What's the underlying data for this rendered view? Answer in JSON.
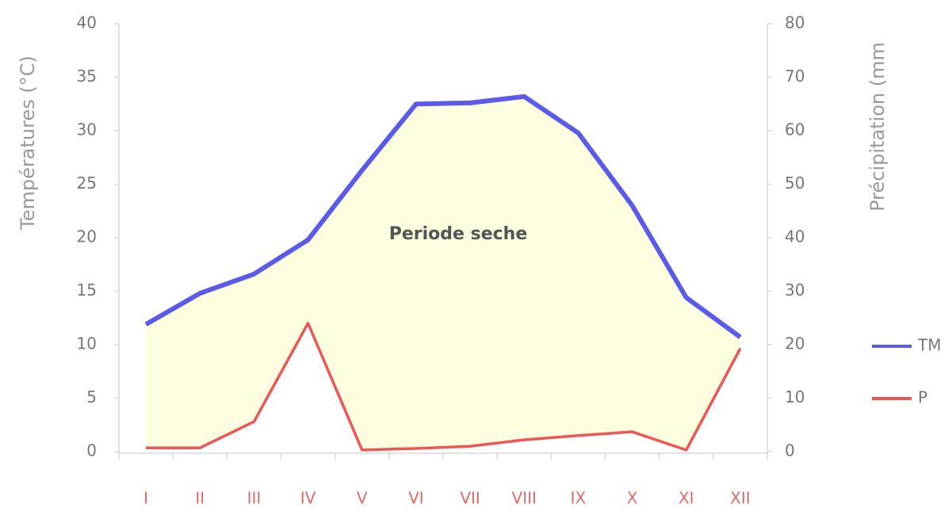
{
  "chart_data": {
    "type": "line",
    "annotation": "Periode seche",
    "y_label": "Températures (°C)",
    "y2_label": "Précipitation (mm",
    "categories": [
      "I",
      "II",
      "III",
      "IV",
      "V",
      "VI",
      "VII",
      "VIII",
      "IX",
      "X",
      "XI",
      "XII"
    ],
    "series": [
      {
        "name": "TM",
        "color": "#5b5be8",
        "values": [
          11.9,
          14.8,
          16.6,
          19.8,
          26.3,
          32.5,
          32.6,
          33.2,
          29.8,
          23.0,
          14.4,
          10.7
        ]
      },
      {
        "name": "P",
        "color": "#ee5555",
        "axis": "y2",
        "values": [
          0.7,
          0.7,
          5.6,
          24,
          0.3,
          0.6,
          1,
          2.2,
          3,
          3.7,
          0.3,
          19.3
        ]
      }
    ],
    "ylim": [
      0,
      40
    ],
    "yticks": [
      0,
      5,
      10,
      15,
      20,
      25,
      30,
      35,
      40
    ],
    "y2lim": [
      0,
      80
    ],
    "y2ticks": [
      0,
      10,
      20,
      30,
      40,
      50,
      60,
      70,
      80
    ],
    "fill_color": "#fdfde0",
    "category_color": "#e06a6a"
  }
}
